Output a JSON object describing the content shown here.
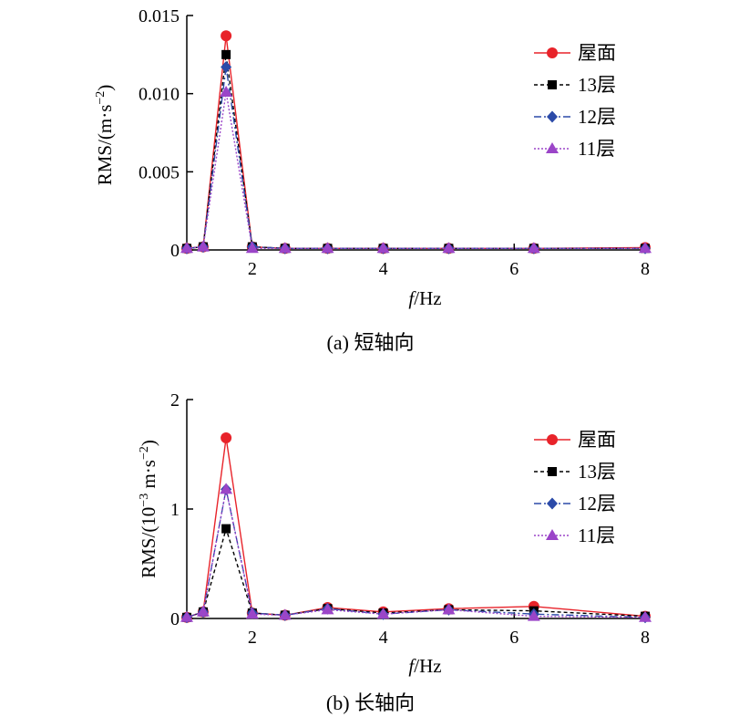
{
  "chart_data": [
    {
      "type": "line",
      "caption": "(a) 短轴向",
      "xlabel_italic": "f",
      "xlabel_unit": "/Hz",
      "ylabel": "RMS/(m·s",
      "ylabel_sup": "−2",
      "ylabel_close": ")",
      "xlim": [
        1,
        8
      ],
      "ylim": [
        0,
        0.015
      ],
      "xticks": [
        2,
        4,
        6,
        8
      ],
      "xtick_labels": [
        "2",
        "4",
        "6",
        "8"
      ],
      "yticks": [
        0,
        0.005,
        0.01,
        0.015
      ],
      "ytick_labels": [
        "0",
        "0.005",
        "0.010",
        "0.015"
      ],
      "legend_position": "top-right",
      "x": [
        1.0,
        1.25,
        1.6,
        2.0,
        2.5,
        3.15,
        4.0,
        5.0,
        6.3,
        8.0
      ],
      "series": [
        {
          "name": "屋面",
          "color": "#e8232a",
          "marker": "circle",
          "dash": "",
          "values": [
            0.0001,
            0.0002,
            0.0137,
            0.0002,
            0.0001,
            0.0001,
            0.0001,
            0.0001,
            0.0001,
            0.00015
          ]
        },
        {
          "name": "13层",
          "color": "#000000",
          "marker": "square",
          "dash": "4,3",
          "values": [
            0.0001,
            0.0002,
            0.0125,
            0.0002,
            0.0001,
            0.0001,
            0.0001,
            0.0001,
            0.0001,
            0.0001
          ]
        },
        {
          "name": "12层",
          "color": "#2b4aa8",
          "marker": "diamond",
          "dash": "8,3,2,3",
          "values": [
            0.0001,
            0.0002,
            0.0117,
            0.0002,
            0.0001,
            0.0001,
            0.0001,
            0.0001,
            0.0001,
            0.0001
          ]
        },
        {
          "name": "11层",
          "color": "#9b45c8",
          "marker": "triangle",
          "dash": "2,2",
          "values": [
            0.0001,
            0.0002,
            0.0101,
            0.0001,
            0.0001,
            0.0001,
            0.0001,
            0.0001,
            0.0001,
            0.0001
          ]
        }
      ]
    },
    {
      "type": "line",
      "caption": "(b) 长轴向",
      "xlabel_italic": "f",
      "xlabel_unit": "/Hz",
      "ylabel": "RMS/(10",
      "ylabel_sup": "−3",
      "ylabel_mid": " m·s",
      "ylabel_sup2": "−2",
      "ylabel_close": ")",
      "xlim": [
        1,
        8
      ],
      "ylim": [
        0,
        2
      ],
      "xticks": [
        2,
        4,
        6,
        8
      ],
      "xtick_labels": [
        "2",
        "4",
        "6",
        "8"
      ],
      "yticks": [
        0,
        1,
        2
      ],
      "ytick_labels": [
        "0",
        "1",
        "2"
      ],
      "legend_position": "top-right",
      "x": [
        1.0,
        1.25,
        1.6,
        2.0,
        2.5,
        3.15,
        4.0,
        5.0,
        6.3,
        8.0
      ],
      "series": [
        {
          "name": "屋面",
          "color": "#e8232a",
          "marker": "circle",
          "dash": "",
          "values": [
            0.01,
            0.06,
            1.65,
            0.05,
            0.03,
            0.1,
            0.06,
            0.09,
            0.11,
            0.02
          ]
        },
        {
          "name": "13层",
          "color": "#000000",
          "marker": "square",
          "dash": "4,3",
          "values": [
            0.01,
            0.06,
            0.82,
            0.05,
            0.03,
            0.09,
            0.05,
            0.08,
            0.07,
            0.02
          ]
        },
        {
          "name": "12层",
          "color": "#2b4aa8",
          "marker": "diamond",
          "dash": "8,3,2,3",
          "values": [
            0.01,
            0.06,
            1.18,
            0.05,
            0.03,
            0.09,
            0.04,
            0.08,
            0.04,
            0.01
          ]
        },
        {
          "name": "11层",
          "color": "#9b45c8",
          "marker": "triangle",
          "dash": "2,2",
          "values": [
            0.01,
            0.06,
            1.18,
            0.04,
            0.03,
            0.08,
            0.04,
            0.08,
            0.02,
            0.01
          ]
        }
      ]
    }
  ]
}
